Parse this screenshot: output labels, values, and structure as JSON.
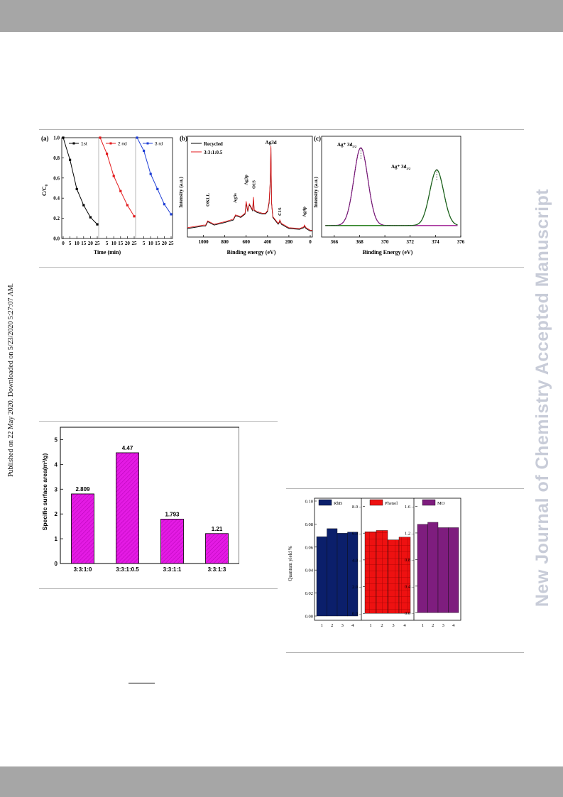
{
  "page": {
    "side_left_text": "Published on 22 May 2020. Downloaded on 5/23/2020 5:27:07 AM.",
    "side_right_text": "New Journal of Chemistry Accepted Manuscript"
  },
  "colors": {
    "band": "#a6a6a6",
    "black": "#000000",
    "red": "#e31a1c",
    "blue": "#1f3fd6",
    "purple": "#a020a0",
    "green": "#1a7a1a",
    "magenta": "#e41be4",
    "navy": "#0b1f6b",
    "bar_red": "#ee1111",
    "bar_purple": "#7e1d7e"
  },
  "figure1": {
    "panel_a": {
      "label": "(a)",
      "ylabel": "C/C",
      "ylabel_sub": "0",
      "xlabel": "Time (min)",
      "legend": [
        "1st",
        "2 nd",
        "3 rd"
      ]
    },
    "panel_b": {
      "label": "(b)",
      "ylabel": "Intensity (a.u.)",
      "xlabel": "Binding energy (eV)",
      "legend": [
        "Recycled",
        "3:3:1:0.5"
      ],
      "peaks": [
        "OKLL",
        "Ag3s",
        "Ag3p",
        "O1S",
        "Ag3d",
        "C1S",
        "Ag4p"
      ]
    },
    "panel_c": {
      "label": "(c)",
      "ylabel": "Intensity (a.u.)",
      "xlabel": "Binding Energy (eV)",
      "peak_left": "Ag⁺ 3d",
      "peak_left_sub": "5/2",
      "peak_right": "Ag⁺ 3d",
      "peak_right_sub": "3/2"
    }
  },
  "chart_data": [
    {
      "type": "line",
      "panel": "a",
      "title": "",
      "xlabel": "Time (min)",
      "ylabel": "C/C0",
      "ylim": [
        0.0,
        1.0
      ],
      "x_ticks": [
        "0",
        "5",
        "10",
        "15",
        "20",
        "25",
        "5",
        "10",
        "15",
        "20",
        "25",
        "5",
        "10",
        "15",
        "20",
        "25"
      ],
      "y_ticks": [
        "0.0",
        "0.2",
        "0.4",
        "0.6",
        "0.8",
        "1.0"
      ],
      "series": [
        {
          "name": "1st",
          "x": [
            0,
            5,
            10,
            15,
            20,
            25
          ],
          "values": [
            1.0,
            0.78,
            0.49,
            0.33,
            0.21,
            0.14
          ]
        },
        {
          "name": "2 nd",
          "x": [
            0,
            5,
            10,
            15,
            20,
            25
          ],
          "values": [
            1.0,
            0.84,
            0.62,
            0.47,
            0.33,
            0.22
          ]
        },
        {
          "name": "3 rd",
          "x": [
            0,
            5,
            10,
            15,
            20,
            25
          ],
          "values": [
            1.0,
            0.87,
            0.64,
            0.49,
            0.34,
            0.24
          ]
        }
      ]
    },
    {
      "type": "line",
      "panel": "b",
      "title": "",
      "xlabel": "Binding energy (eV)",
      "ylabel": "Intensity (a.u.)",
      "xlim": [
        1150,
        -20
      ],
      "x_ticks": [
        "1000",
        "800",
        "600",
        "400",
        "200",
        "0"
      ],
      "series": [
        {
          "name": "Recycled",
          "x": [
            1150,
            1000,
            980,
            960,
            900,
            800,
            720,
            700,
            650,
            610,
            600,
            585,
            570,
            540,
            532,
            525,
            500,
            450,
            420,
            400,
            385,
            374,
            368,
            362,
            350,
            300,
            290,
            285,
            270,
            200,
            100,
            60,
            55,
            40,
            0,
            -20
          ],
          "values": [
            0.05,
            0.08,
            0.08,
            0.13,
            0.09,
            0.12,
            0.15,
            0.2,
            0.18,
            0.22,
            0.35,
            0.25,
            0.33,
            0.26,
            0.4,
            0.26,
            0.24,
            0.22,
            0.22,
            0.25,
            0.35,
            0.6,
            1.0,
            0.35,
            0.18,
            0.1,
            0.12,
            0.14,
            0.1,
            0.05,
            0.04,
            0.06,
            0.08,
            0.05,
            0.02,
            0.02
          ]
        },
        {
          "name": "3:3:1:0.5",
          "x": [
            1150,
            1000,
            980,
            960,
            900,
            800,
            720,
            700,
            650,
            610,
            600,
            585,
            570,
            540,
            532,
            525,
            500,
            450,
            420,
            400,
            385,
            374,
            368,
            362,
            350,
            300,
            290,
            285,
            270,
            200,
            100,
            60,
            55,
            40,
            0,
            -20
          ],
          "values": [
            0.06,
            0.09,
            0.09,
            0.14,
            0.1,
            0.13,
            0.16,
            0.21,
            0.19,
            0.23,
            0.37,
            0.26,
            0.34,
            0.27,
            0.42,
            0.27,
            0.25,
            0.23,
            0.23,
            0.26,
            0.37,
            0.62,
            1.02,
            0.36,
            0.19,
            0.11,
            0.13,
            0.15,
            0.11,
            0.06,
            0.05,
            0.07,
            0.09,
            0.06,
            0.03,
            0.03
          ]
        }
      ]
    },
    {
      "type": "line",
      "panel": "c",
      "title": "",
      "xlabel": "Binding Energy (eV)",
      "ylabel": "Intensity (a.u.)",
      "xlim": [
        365,
        376
      ],
      "x_ticks": [
        "366",
        "368",
        "370",
        "372",
        "374",
        "376"
      ],
      "series": [
        {
          "name": "",
          "x": [
            365,
            366,
            367,
            367.5,
            368.1,
            368.7,
            369.2,
            370,
            371,
            372,
            373,
            373.5,
            374.1,
            374.7,
            375.2,
            376
          ],
          "values": [
            0.02,
            0.03,
            0.25,
            0.7,
            1.0,
            0.7,
            0.3,
            0.05,
            0.02,
            0.02,
            0.1,
            0.45,
            0.72,
            0.45,
            0.12,
            0.03
          ]
        }
      ]
    },
    {
      "type": "bar",
      "panel": "surface-area",
      "title": "",
      "xlabel": "",
      "ylabel": "Specific surface area(m²/g)",
      "ylim": [
        0,
        5.5
      ],
      "y_ticks": [
        "0",
        "1",
        "2",
        "3",
        "4",
        "5"
      ],
      "categories": [
        "3:3:1:0",
        "3:3:1:0.5",
        "3:3:1:1",
        "3:3:1:3"
      ],
      "values": [
        2.809,
        4.47,
        1.793,
        1.21
      ],
      "data_labels": [
        "2.809",
        "4.47",
        "1.793",
        "1.21"
      ]
    },
    {
      "type": "bar",
      "panel": "quantum-yield",
      "title": "",
      "xlabel": "",
      "ylabel": "Quantum yield %",
      "groups": [
        {
          "name": "RhB",
          "ylim": [
            0,
            0.1
          ],
          "y_ticks": [
            "0.00",
            "0.02",
            "0.04",
            "0.06",
            "0.08",
            "0.10"
          ],
          "categories": [
            "1",
            "2",
            "3",
            "4"
          ],
          "values": [
            0.069,
            0.076,
            0.072,
            0.073
          ]
        },
        {
          "name": "Phenol",
          "ylim": [
            -0.2,
            8.4
          ],
          "y_ticks": [
            "0.0",
            "2.0",
            "4.0",
            "6.0",
            "8.0"
          ],
          "categories": [
            "1",
            "2",
            "3",
            "4"
          ],
          "values": [
            6.1,
            6.2,
            5.5,
            5.7
          ]
        },
        {
          "name": "MO",
          "ylim": [
            -0.05,
            1.68
          ],
          "y_ticks": [
            "0.0",
            "0.4",
            "0.8",
            "1.2",
            "1.6"
          ],
          "categories": [
            "1",
            "2",
            "3",
            "4"
          ],
          "values": [
            1.33,
            1.36,
            1.28,
            1.28
          ]
        }
      ]
    }
  ]
}
